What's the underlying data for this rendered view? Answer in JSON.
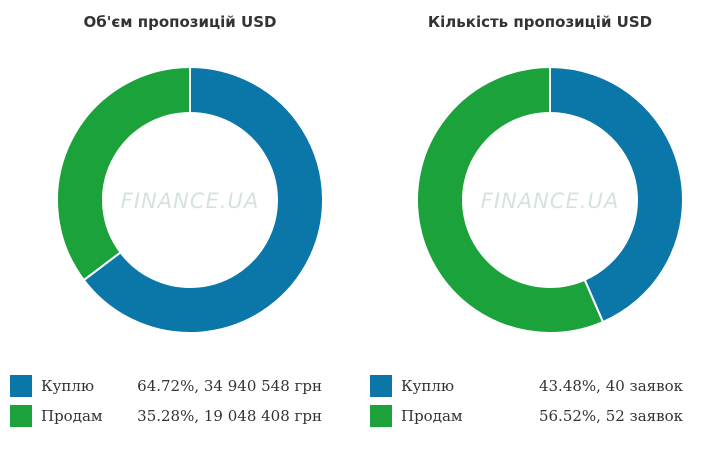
{
  "watermark": "FINANCE.UA",
  "colors": {
    "buy": "#0b77a8",
    "sell": "#1ca23a"
  },
  "chart_data": [
    {
      "type": "pie",
      "title": "Об'єм пропозицій USD",
      "series": [
        {
          "name": "Куплю",
          "value": 64.72,
          "color": "#0b77a8",
          "legend_value": "64.72%, 34 940 548 грн"
        },
        {
          "name": "Продам",
          "value": 35.28,
          "color": "#1ca23a",
          "legend_value": "35.28%, 19 048 408 грн"
        }
      ]
    },
    {
      "type": "pie",
      "title": "Кількість пропозицій USD",
      "series": [
        {
          "name": "Куплю",
          "value": 43.48,
          "color": "#0b77a8",
          "legend_value": "43.48%, 40 заявок"
        },
        {
          "name": "Продам",
          "value": 56.52,
          "color": "#1ca23a",
          "legend_value": "56.52%, 52 заявок"
        }
      ]
    }
  ]
}
